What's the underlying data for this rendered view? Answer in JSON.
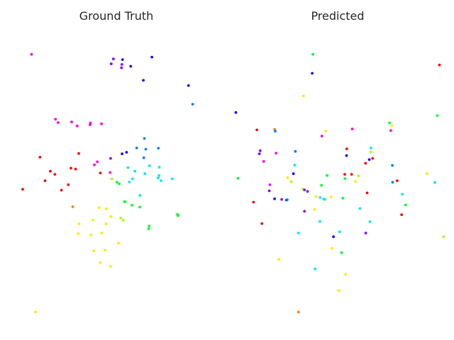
{
  "palette": {
    "red": "#ff0000",
    "orange": "#ff7f00",
    "yellow": "#ffea00",
    "lime": "#a8ff00",
    "green": "#00ff2a",
    "cyan": "#00e5ff",
    "azure": "#0080ff",
    "blue": "#1e00ff",
    "violet": "#8a00ff",
    "magenta": "#ff00e6"
  },
  "chart_data": [
    {
      "type": "scatter",
      "title": "Ground Truth",
      "grid": false,
      "axes_visible": false,
      "xlim": [
        0,
        1
      ],
      "ylim": [
        0,
        1
      ],
      "points": [
        {
          "x": 0.117,
          "y": 0.915,
          "color": "magenta"
        },
        {
          "x": 0.528,
          "y": 0.898,
          "color": "blue"
        },
        {
          "x": 0.487,
          "y": 0.9,
          "color": "violet"
        },
        {
          "x": 0.477,
          "y": 0.884,
          "color": "violet"
        },
        {
          "x": 0.525,
          "y": 0.882,
          "color": "violet"
        },
        {
          "x": 0.565,
          "y": 0.876,
          "color": "blue"
        },
        {
          "x": 0.523,
          "y": 0.871,
          "color": "violet"
        },
        {
          "x": 0.661,
          "y": 0.906,
          "color": "blue"
        },
        {
          "x": 0.622,
          "y": 0.83,
          "color": "blue"
        },
        {
          "x": 0.826,
          "y": 0.813,
          "color": "blue"
        },
        {
          "x": 0.845,
          "y": 0.752,
          "color": "azure"
        },
        {
          "x": 0.225,
          "y": 0.703,
          "color": "magenta"
        },
        {
          "x": 0.237,
          "y": 0.692,
          "color": "magenta"
        },
        {
          "x": 0.298,
          "y": 0.694,
          "color": "magenta"
        },
        {
          "x": 0.383,
          "y": 0.691,
          "color": "magenta"
        },
        {
          "x": 0.381,
          "y": 0.685,
          "color": "magenta"
        },
        {
          "x": 0.433,
          "y": 0.688,
          "color": "magenta"
        },
        {
          "x": 0.323,
          "y": 0.681,
          "color": "magenta"
        },
        {
          "x": 0.627,
          "y": 0.64,
          "color": "azure"
        },
        {
          "x": 0.592,
          "y": 0.609,
          "color": "azure"
        },
        {
          "x": 0.633,
          "y": 0.605,
          "color": "azure"
        },
        {
          "x": 0.69,
          "y": 0.608,
          "color": "azure"
        },
        {
          "x": 0.546,
          "y": 0.595,
          "color": "blue"
        },
        {
          "x": 0.526,
          "y": 0.59,
          "color": "blue"
        },
        {
          "x": 0.33,
          "y": 0.591,
          "color": "red"
        },
        {
          "x": 0.155,
          "y": 0.579,
          "color": "red"
        },
        {
          "x": 0.474,
          "y": 0.575,
          "color": "violet"
        },
        {
          "x": 0.624,
          "y": 0.577,
          "color": "azure"
        },
        {
          "x": 0.414,
          "y": 0.564,
          "color": "magenta"
        },
        {
          "x": 0.401,
          "y": 0.554,
          "color": "magenta"
        },
        {
          "x": 0.65,
          "y": 0.551,
          "color": "cyan"
        },
        {
          "x": 0.694,
          "y": 0.546,
          "color": "cyan"
        },
        {
          "x": 0.295,
          "y": 0.543,
          "color": "red"
        },
        {
          "x": 0.316,
          "y": 0.54,
          "color": "red"
        },
        {
          "x": 0.553,
          "y": 0.545,
          "color": "cyan"
        },
        {
          "x": 0.584,
          "y": 0.533,
          "color": "cyan"
        },
        {
          "x": 0.202,
          "y": 0.533,
          "color": "red"
        },
        {
          "x": 0.222,
          "y": 0.523,
          "color": "red"
        },
        {
          "x": 0.428,
          "y": 0.527,
          "color": "red"
        },
        {
          "x": 0.472,
          "y": 0.529,
          "color": "magenta"
        },
        {
          "x": 0.629,
          "y": 0.525,
          "color": "cyan"
        },
        {
          "x": 0.693,
          "y": 0.519,
          "color": "cyan"
        },
        {
          "x": 0.689,
          "y": 0.511,
          "color": "cyan"
        },
        {
          "x": 0.573,
          "y": 0.508,
          "color": "cyan"
        },
        {
          "x": 0.753,
          "y": 0.508,
          "color": "cyan"
        },
        {
          "x": 0.48,
          "y": 0.508,
          "color": "lime"
        },
        {
          "x": 0.178,
          "y": 0.502,
          "color": "red"
        },
        {
          "x": 0.702,
          "y": 0.502,
          "color": "cyan"
        },
        {
          "x": 0.559,
          "y": 0.498,
          "color": "cyan"
        },
        {
          "x": 0.503,
          "y": 0.497,
          "color": "green"
        },
        {
          "x": 0.513,
          "y": 0.492,
          "color": "green"
        },
        {
          "x": 0.283,
          "y": 0.489,
          "color": "red"
        },
        {
          "x": 0.077,
          "y": 0.474,
          "color": "red"
        },
        {
          "x": 0.252,
          "y": 0.471,
          "color": "red"
        },
        {
          "x": 0.607,
          "y": 0.454,
          "color": "cyan"
        },
        {
          "x": 0.537,
          "y": 0.434,
          "color": "green"
        },
        {
          "x": 0.54,
          "y": 0.433,
          "color": "green"
        },
        {
          "x": 0.571,
          "y": 0.422,
          "color": "green"
        },
        {
          "x": 0.606,
          "y": 0.416,
          "color": "green"
        },
        {
          "x": 0.303,
          "y": 0.417,
          "color": "orange"
        },
        {
          "x": 0.422,
          "y": 0.414,
          "color": "yellow"
        },
        {
          "x": 0.455,
          "y": 0.41,
          "color": "yellow"
        },
        {
          "x": 0.776,
          "y": 0.392,
          "color": "green"
        },
        {
          "x": 0.779,
          "y": 0.388,
          "color": "green"
        },
        {
          "x": 0.475,
          "y": 0.385,
          "color": "yellow"
        },
        {
          "x": 0.52,
          "y": 0.38,
          "color": "lime"
        },
        {
          "x": 0.395,
          "y": 0.373,
          "color": "yellow"
        },
        {
          "x": 0.531,
          "y": 0.373,
          "color": "lime"
        },
        {
          "x": 0.331,
          "y": 0.361,
          "color": "yellow"
        },
        {
          "x": 0.454,
          "y": 0.361,
          "color": "yellow"
        },
        {
          "x": 0.648,
          "y": 0.354,
          "color": "green"
        },
        {
          "x": 0.646,
          "y": 0.345,
          "color": "green"
        },
        {
          "x": 0.328,
          "y": 0.329,
          "color": "yellow"
        },
        {
          "x": 0.434,
          "y": 0.331,
          "color": "yellow"
        },
        {
          "x": 0.385,
          "y": 0.325,
          "color": "yellow"
        },
        {
          "x": 0.51,
          "y": 0.298,
          "color": "yellow"
        },
        {
          "x": 0.398,
          "y": 0.273,
          "color": "yellow"
        },
        {
          "x": 0.449,
          "y": 0.275,
          "color": "yellow"
        },
        {
          "x": 0.427,
          "y": 0.234,
          "color": "yellow"
        },
        {
          "x": 0.474,
          "y": 0.222,
          "color": "yellow"
        },
        {
          "x": 0.135,
          "y": 0.073,
          "color": "yellow"
        }
      ]
    },
    {
      "type": "scatter",
      "title": "Predicted",
      "grid": false,
      "axes_visible": false,
      "xlim": [
        0,
        1
      ],
      "ylim": [
        0,
        1
      ],
      "points": [
        {
          "x": 0.388,
          "y": 0.915,
          "color": "green"
        },
        {
          "x": 0.96,
          "y": 0.88,
          "color": "red"
        },
        {
          "x": 0.385,
          "y": 0.853,
          "color": "blue"
        },
        {
          "x": 0.345,
          "y": 0.779,
          "color": "yellow"
        },
        {
          "x": 0.04,
          "y": 0.725,
          "color": "blue"
        },
        {
          "x": 0.95,
          "y": 0.715,
          "color": "green"
        },
        {
          "x": 0.735,
          "y": 0.691,
          "color": "green"
        },
        {
          "x": 0.745,
          "y": 0.682,
          "color": "yellow"
        },
        {
          "x": 0.566,
          "y": 0.671,
          "color": "magenta"
        },
        {
          "x": 0.135,
          "y": 0.668,
          "color": "red"
        },
        {
          "x": 0.215,
          "y": 0.67,
          "color": "orange"
        },
        {
          "x": 0.74,
          "y": 0.666,
          "color": "magenta"
        },
        {
          "x": 0.218,
          "y": 0.664,
          "color": "azure"
        },
        {
          "x": 0.446,
          "y": 0.664,
          "color": "yellow"
        },
        {
          "x": 0.429,
          "y": 0.648,
          "color": "magenta"
        },
        {
          "x": 0.65,
          "y": 0.609,
          "color": "cyan"
        },
        {
          "x": 0.15,
          "y": 0.6,
          "color": "violet"
        },
        {
          "x": 0.309,
          "y": 0.598,
          "color": "azure"
        },
        {
          "x": 0.541,
          "y": 0.606,
          "color": "red"
        },
        {
          "x": 0.65,
          "y": 0.596,
          "color": "lime"
        },
        {
          "x": 0.146,
          "y": 0.59,
          "color": "violet"
        },
        {
          "x": 0.222,
          "y": 0.592,
          "color": "magenta"
        },
        {
          "x": 0.54,
          "y": 0.584,
          "color": "blue"
        },
        {
          "x": 0.643,
          "y": 0.571,
          "color": "blue"
        },
        {
          "x": 0.658,
          "y": 0.575,
          "color": "red"
        },
        {
          "x": 0.166,
          "y": 0.565,
          "color": "magenta"
        },
        {
          "x": 0.626,
          "y": 0.559,
          "color": "red"
        },
        {
          "x": 0.747,
          "y": 0.552,
          "color": "azure"
        },
        {
          "x": 0.306,
          "y": 0.553,
          "color": "cyan"
        },
        {
          "x": 0.903,
          "y": 0.525,
          "color": "yellow"
        },
        {
          "x": 0.3,
          "y": 0.525,
          "color": "blue"
        },
        {
          "x": 0.532,
          "y": 0.523,
          "color": "red"
        },
        {
          "x": 0.563,
          "y": 0.523,
          "color": "red"
        },
        {
          "x": 0.594,
          "y": 0.518,
          "color": "lime"
        },
        {
          "x": 0.452,
          "y": 0.519,
          "color": "green"
        },
        {
          "x": 0.05,
          "y": 0.51,
          "color": "green"
        },
        {
          "x": 0.274,
          "y": 0.512,
          "color": "yellow"
        },
        {
          "x": 0.533,
          "y": 0.509,
          "color": "green"
        },
        {
          "x": 0.769,
          "y": 0.502,
          "color": "red"
        },
        {
          "x": 0.29,
          "y": 0.499,
          "color": "lime"
        },
        {
          "x": 0.58,
          "y": 0.499,
          "color": "yellow"
        },
        {
          "x": 0.748,
          "y": 0.497,
          "color": "azure"
        },
        {
          "x": 0.939,
          "y": 0.496,
          "color": "cyan"
        },
        {
          "x": 0.194,
          "y": 0.489,
          "color": "magenta"
        },
        {
          "x": 0.427,
          "y": 0.487,
          "color": "green"
        },
        {
          "x": 0.343,
          "y": 0.475,
          "color": "lime"
        },
        {
          "x": 0.191,
          "y": 0.469,
          "color": "violet"
        },
        {
          "x": 0.35,
          "y": 0.472,
          "color": "violet"
        },
        {
          "x": 0.364,
          "y": 0.467,
          "color": "violet"
        },
        {
          "x": 0.633,
          "y": 0.462,
          "color": "red"
        },
        {
          "x": 0.792,
          "y": 0.458,
          "color": "cyan"
        },
        {
          "x": 0.47,
          "y": 0.449,
          "color": "yellow"
        },
        {
          "x": 0.421,
          "y": 0.447,
          "color": "cyan"
        },
        {
          "x": 0.437,
          "y": 0.442,
          "color": "cyan"
        },
        {
          "x": 0.442,
          "y": 0.441,
          "color": "cyan"
        },
        {
          "x": 0.403,
          "y": 0.45,
          "color": "yellow"
        },
        {
          "x": 0.215,
          "y": 0.443,
          "color": "blue"
        },
        {
          "x": 0.247,
          "y": 0.441,
          "color": "violet"
        },
        {
          "x": 0.269,
          "y": 0.439,
          "color": "blue"
        },
        {
          "x": 0.523,
          "y": 0.445,
          "color": "green"
        },
        {
          "x": 0.272,
          "y": 0.44,
          "color": "azure"
        },
        {
          "x": 0.12,
          "y": 0.432,
          "color": "red"
        },
        {
          "x": 0.807,
          "y": 0.423,
          "color": "green"
        },
        {
          "x": 0.396,
          "y": 0.408,
          "color": "yellow"
        },
        {
          "x": 0.35,
          "y": 0.402,
          "color": "violet"
        },
        {
          "x": 0.601,
          "y": 0.411,
          "color": "cyan"
        },
        {
          "x": 0.789,
          "y": 0.391,
          "color": "red"
        },
        {
          "x": 0.158,
          "y": 0.362,
          "color": "red"
        },
        {
          "x": 0.646,
          "y": 0.368,
          "color": "cyan"
        },
        {
          "x": 0.42,
          "y": 0.369,
          "color": "cyan"
        },
        {
          "x": 0.979,
          "y": 0.319,
          "color": "lime"
        },
        {
          "x": 0.323,
          "y": 0.331,
          "color": "cyan"
        },
        {
          "x": 0.509,
          "y": 0.335,
          "color": "cyan"
        },
        {
          "x": 0.627,
          "y": 0.331,
          "color": "violet"
        },
        {
          "x": 0.481,
          "y": 0.319,
          "color": "blue"
        },
        {
          "x": 0.474,
          "y": 0.281,
          "color": "yellow"
        },
        {
          "x": 0.518,
          "y": 0.267,
          "color": "green"
        },
        {
          "x": 0.234,
          "y": 0.245,
          "color": "yellow"
        },
        {
          "x": 0.398,
          "y": 0.214,
          "color": "cyan"
        },
        {
          "x": 0.536,
          "y": 0.196,
          "color": "yellow"
        },
        {
          "x": 0.505,
          "y": 0.143,
          "color": "yellow"
        },
        {
          "x": 0.323,
          "y": 0.073,
          "color": "orange"
        }
      ]
    }
  ]
}
